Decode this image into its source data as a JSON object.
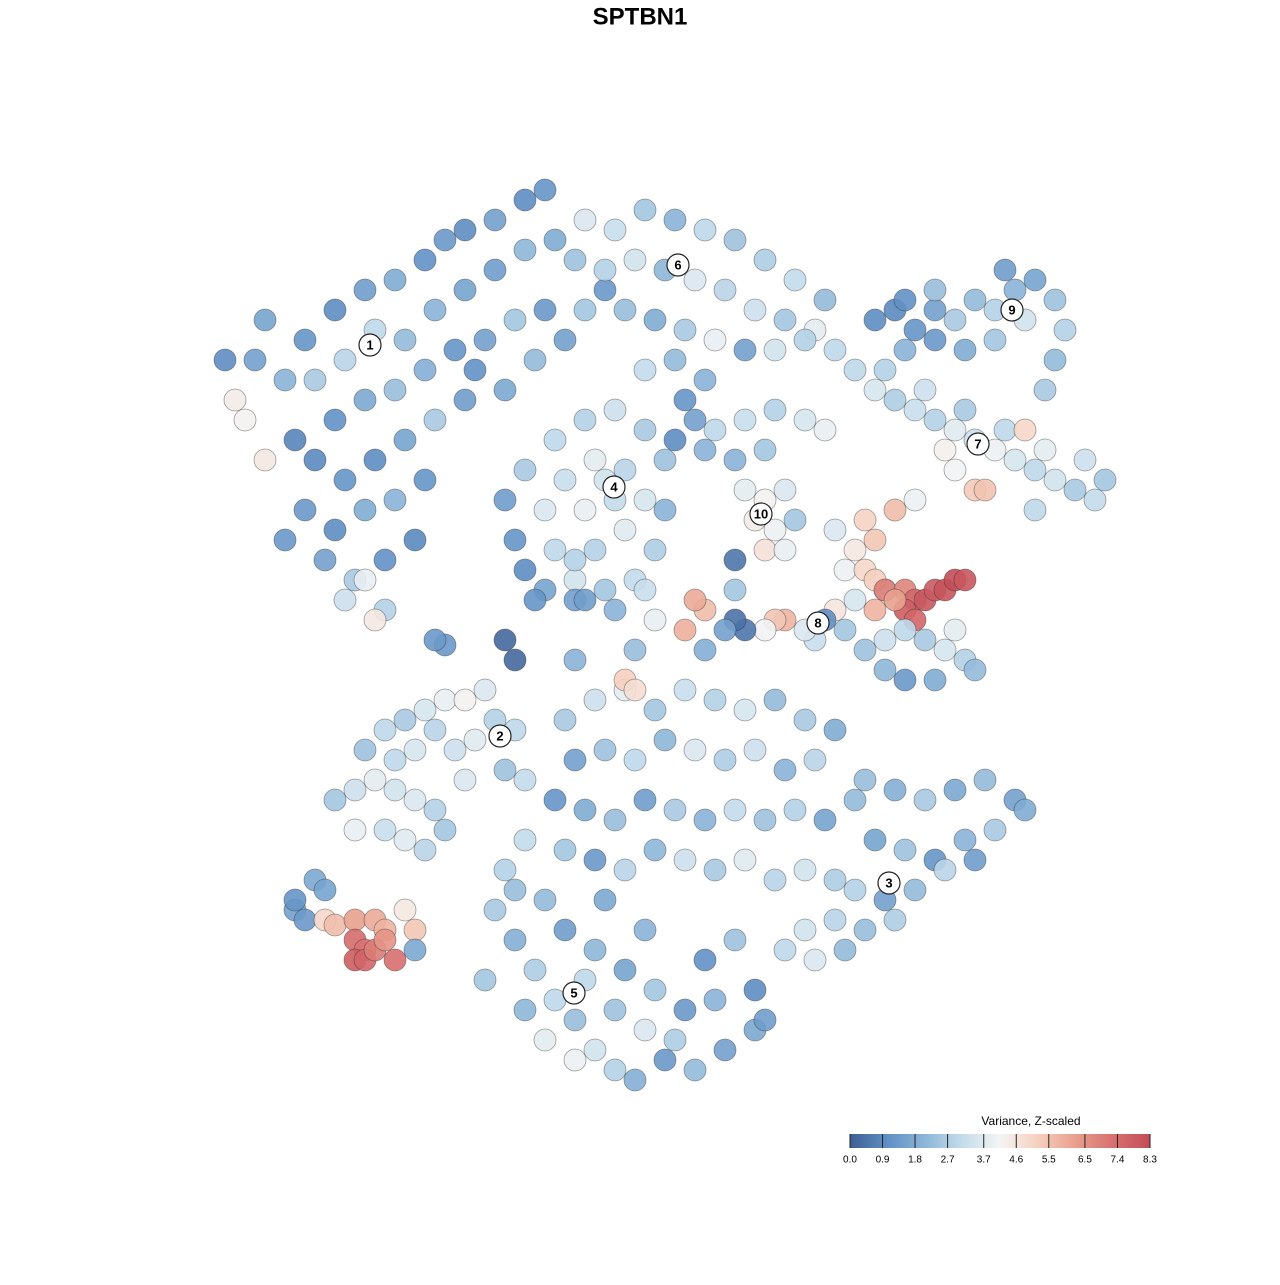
{
  "chart_data": {
    "type": "scatter",
    "title": "SPTBN1",
    "xlim": [
      -47,
      47
    ],
    "ylim": [
      -46,
      46
    ],
    "x": [
      -42,
      -43,
      -40,
      -38,
      -41,
      -36,
      -33,
      -30,
      -27,
      -24,
      -22,
      -20,
      -17,
      -14,
      -12,
      -35,
      -32,
      -29,
      -26,
      -23,
      -20,
      -17,
      -14,
      -11,
      -9,
      -33,
      -30,
      -27,
      -24,
      -21,
      -18,
      -15,
      -12,
      -35,
      -32,
      -29,
      -26,
      -23,
      -20,
      -36,
      -33,
      -30,
      -27,
      -24,
      -34,
      -31,
      -28,
      -25,
      -32,
      -28,
      -29,
      -30,
      -38,
      -37,
      -44,
      -40,
      -19,
      -16,
      -13,
      -10,
      -8,
      -6,
      -8,
      -5,
      -2,
      1,
      4,
      7,
      10,
      13,
      16,
      -6,
      -3,
      0,
      3,
      6,
      9,
      12,
      15,
      17,
      -4,
      -1,
      2,
      5,
      8,
      1,
      -2,
      4,
      11,
      14,
      2,
      3,
      1,
      4,
      21,
      23,
      25,
      27,
      29,
      31,
      33,
      35,
      37,
      39,
      40,
      39,
      38,
      36,
      33,
      30,
      27,
      24,
      34,
      27,
      24,
      19,
      21,
      23,
      25,
      27,
      29,
      31,
      33,
      35,
      37,
      39,
      41,
      43,
      44,
      42,
      38,
      34,
      30,
      26,
      22,
      28,
      31,
      32,
      37,
      36,
      29,
      5,
      8,
      11,
      14,
      16,
      10,
      7,
      -16,
      -15,
      -14,
      -12,
      -14,
      -11,
      -8,
      -5,
      -2,
      0,
      0,
      -1,
      -3,
      -6,
      -9,
      -11,
      -12,
      -10,
      -7,
      -4,
      -2,
      -4,
      -7,
      -8,
      -5,
      -6,
      -13,
      -9,
      8,
      10,
      12,
      9,
      11,
      10,
      12,
      7,
      13,
      17,
      19,
      20,
      21,
      23,
      25,
      18,
      20,
      22,
      19,
      17,
      21,
      22,
      24,
      25,
      26,
      27,
      28,
      29,
      30,
      24,
      23,
      21,
      25,
      16,
      18,
      20,
      22,
      24,
      26,
      28,
      30,
      31,
      27,
      24,
      22,
      29,
      15,
      14,
      12,
      11,
      10,
      8,
      7,
      6,
      4,
      3,
      2,
      -1,
      -5,
      -3,
      -15,
      -22,
      -9,
      -2,
      7,
      4,
      -9,
      -33,
      -31,
      -29,
      -27,
      -25,
      -23,
      -31,
      -28,
      -26,
      -24,
      -22,
      -30,
      -28,
      -26,
      -24,
      -22,
      -20,
      -18,
      -17,
      -15,
      -19,
      -21,
      -23,
      -25,
      -16,
      -14,
      -20,
      -27,
      -37,
      -36,
      -35,
      -34,
      -33,
      -31,
      -29,
      -28,
      -26,
      -25,
      -31,
      -30,
      -31,
      -30,
      -29,
      -28,
      -27,
      -10,
      -7,
      -4,
      -1,
      2,
      5,
      8,
      11,
      14,
      17,
      -9,
      -6,
      -3,
      0,
      3,
      6,
      9,
      12,
      15,
      -4,
      -3,
      -11,
      -8,
      -5,
      -2,
      1,
      4,
      7,
      10,
      13,
      16,
      19,
      -10,
      -7,
      -4,
      -1,
      2,
      5,
      8,
      11,
      14,
      17,
      -16,
      -14,
      -12,
      20,
      23,
      26,
      29,
      32,
      35,
      21,
      24,
      27,
      30,
      33,
      36,
      19,
      22,
      25,
      28,
      31,
      14,
      17,
      20,
      23,
      12,
      15,
      18,
      -17,
      -15,
      -13,
      -11,
      -9,
      -7,
      -5,
      -3,
      0,
      3,
      6,
      9,
      -10,
      -7,
      -4,
      -1,
      2,
      5,
      -8,
      -5,
      -2,
      1,
      -12,
      -9,
      4,
      7,
      -2,
      -15,
      -18,
      -14,
      -6,
      9,
      10,
      -23,
      -16,
      -8,
      -25,
      -34,
      -37
    ],
    "y": [
      22,
      24,
      18,
      26,
      28,
      30,
      33,
      35,
      36,
      38,
      40,
      41,
      42,
      44,
      45,
      26,
      28,
      31,
      30,
      33,
      35,
      37,
      39,
      40,
      38,
      22,
      24,
      25,
      27,
      29,
      30,
      32,
      33,
      18,
      16,
      18,
      20,
      22,
      24,
      13,
      11,
      13,
      14,
      16,
      8,
      6,
      8,
      10,
      4,
      3,
      2,
      6,
      10,
      20,
      28,
      32,
      27,
      25,
      28,
      30,
      33,
      35,
      42,
      41,
      43,
      42,
      41,
      40,
      38,
      36,
      34,
      37,
      38,
      37,
      36,
      35,
      33,
      32,
      31,
      29,
      33,
      32,
      31,
      30,
      29,
      28,
      27,
      26,
      29,
      30,
      24,
      22,
      20,
      19,
      32,
      33,
      31,
      33,
      32,
      34,
      33,
      35,
      36,
      34,
      31,
      28,
      25,
      32,
      30,
      29,
      30,
      29,
      37,
      35,
      34,
      27,
      25,
      24,
      23,
      22,
      21,
      20,
      19,
      18,
      17,
      16,
      15,
      14,
      16,
      18,
      19,
      21,
      23,
      25,
      27,
      19,
      15,
      15,
      13,
      21,
      17,
      21,
      22,
      23,
      22,
      21,
      19,
      18,
      14,
      10,
      7,
      5,
      17,
      20,
      22,
      23,
      21,
      18,
      13,
      9,
      6,
      5,
      6,
      9,
      13,
      16,
      18,
      17,
      14,
      11,
      9,
      13,
      14,
      16,
      4,
      4,
      15,
      14,
      15,
      12,
      11,
      9,
      9,
      8,
      12,
      11,
      9,
      12,
      10,
      13,
      14,
      7,
      7,
      5,
      4,
      3,
      6,
      5,
      5,
      4,
      4,
      5,
      5,
      6,
      6,
      3,
      4,
      3,
      2,
      2,
      1,
      -1,
      0,
      1,
      0,
      -1,
      -2,
      -3,
      -4,
      -4,
      -3,
      1,
      0,
      1,
      2,
      2,
      1,
      1,
      2,
      1,
      3,
      4,
      1,
      2,
      3,
      -1,
      -2,
      -0.5,
      8,
      5,
      5,
      -1,
      -2,
      -16,
      -15,
      -14,
      -15,
      -16,
      -17,
      -19,
      -19,
      -20,
      -21,
      -19,
      -11,
      -9,
      -8,
      -7,
      -6,
      -6,
      -5,
      -8,
      -9,
      -10,
      -11,
      -9,
      -11,
      -13,
      -14,
      -14,
      -12,
      -27,
      -28,
      -24,
      -28,
      -28.5,
      -28,
      -28,
      -29,
      -27,
      -29,
      -30,
      -31,
      -32,
      -32,
      -31,
      -30,
      -32,
      -8,
      -6,
      -5,
      -7,
      -5,
      -6,
      -7,
      -6,
      -8,
      -9,
      -12,
      -11,
      -12,
      -10,
      -11,
      -12,
      -11,
      -13,
      -12,
      -4,
      -5,
      -16,
      -17,
      -18,
      -16,
      -17,
      -18,
      -17,
      -18,
      -17,
      -18,
      -16,
      -21,
      -22,
      -23,
      -21,
      -22,
      -23,
      -22,
      -24,
      -23,
      -24,
      -23,
      -20,
      -26,
      -14,
      -15,
      -16,
      -15,
      -14,
      -16,
      -20,
      -21,
      -22,
      -20,
      -19,
      -17,
      -25,
      -26,
      -25,
      -23,
      -22,
      -29,
      -28,
      -29,
      -28,
      -31,
      -32,
      -31,
      -27,
      -30,
      -33,
      -36,
      -38,
      -41,
      -43,
      -44,
      -42,
      -43,
      -41,
      -39,
      -29,
      -31,
      -33,
      -35,
      -37,
      -36,
      -34,
      -37,
      -39,
      -40,
      -40,
      -42,
      -32,
      -30,
      -29,
      -25,
      -34,
      -37,
      -26,
      -35,
      -38,
      0,
      0,
      4,
      -31,
      -25,
      -26
    ],
    "values": [
      4.2,
      4.4,
      4.5,
      2.0,
      1.5,
      1.2,
      1.0,
      1.4,
      1.8,
      1.1,
      1.3,
      1.0,
      1.5,
      1.0,
      1.2,
      2.6,
      2.9,
      3.0,
      2.2,
      2.0,
      1.6,
      1.4,
      2.1,
      1.8,
      2.4,
      1.1,
      1.7,
      2.3,
      1.9,
      1.2,
      1.5,
      2.5,
      1.3,
      0.9,
      1.2,
      1.0,
      1.6,
      2.6,
      1.4,
      1.3,
      1.0,
      1.8,
      2.0,
      1.2,
      1.5,
      2.6,
      1.1,
      0.9,
      3.3,
      2.8,
      4.5,
      3.9,
      1.3,
      0.8,
      1.0,
      1.6,
      1.1,
      1.7,
      2.2,
      1.5,
      2.5,
      1.3,
      3.6,
      3.2,
      2.5,
      2.0,
      3.0,
      2.4,
      2.7,
      3.1,
      2.2,
      2.8,
      3.4,
      2.1,
      3.6,
      2.9,
      3.3,
      2.5,
      3.8,
      3.0,
      2.3,
      1.8,
      2.6,
      3.9,
      1.5,
      2.2,
      3.1,
      2.0,
      3.4,
      2.8,
      1.2,
      1.5,
      1.0,
      2.0,
      1.0,
      0.9,
      1.2,
      1.5,
      2.6,
      2.2,
      2.8,
      2.0,
      1.6,
      2.4,
      2.8,
      2.2,
      2.6,
      3.4,
      2.5,
      1.8,
      1.3,
      2.0,
      1.4,
      2.3,
      1.1,
      3.0,
      3.5,
      2.7,
      3.2,
      2.8,
      3.7,
      3.3,
      4.0,
      3.5,
      3.0,
      3.4,
      2.6,
      3.1,
      2.5,
      3.3,
      3.8,
      3.0,
      2.6,
      3.3,
      2.8,
      4.3,
      5.3,
      5.5,
      3.0,
      5.0,
      4.1,
      3.0,
      3.2,
      2.8,
      3.5,
      3.9,
      2.5,
      2.0,
      1.4,
      1.2,
      1.0,
      1.6,
      2.6,
      3.0,
      2.8,
      3.3,
      2.6,
      2.4,
      2.0,
      2.7,
      3.1,
      2.5,
      3.4,
      3.0,
      3.6,
      3.2,
      3.8,
      2.9,
      3.5,
      3.7,
      2.8,
      3.9,
      3.1,
      3.4,
      1.2,
      1.5,
      3.8,
      4.2,
      3.6,
      4.4,
      4.0,
      4.7,
      3.9,
      0.5,
      2.5,
      3.6,
      4.5,
      5.1,
      5.4,
      5.6,
      4.0,
      4.0,
      5.0,
      4.3,
      3.5,
      4.6,
      5.2,
      7.0,
      6.8,
      7.5,
      8.0,
      7.9,
      8.1,
      8.3,
      8.0,
      7.8,
      6.2,
      5.8,
      7.6,
      1.0,
      2.5,
      2.4,
      3.3,
      3.0,
      2.6,
      3.5,
      2.8,
      2.2,
      1.8,
      1.3,
      2.1,
      3.8,
      3.2,
      3.6,
      5.8,
      5.4,
      4.1,
      0.5,
      0.4,
      1.5,
      5.6,
      6.0,
      5.9,
      3.9,
      2.0,
      2.3,
      0.2,
      1.3,
      2.8,
      3.2,
      2.5,
      1.9,
      2.0,
      2.5,
      3.3,
      3.8,
      3.4,
      3.6,
      2.8,
      3.9,
      3.2,
      3.7,
      2.9,
      2.5,
      2.4,
      3.0,
      2.6,
      3.5,
      3.9,
      4.2,
      3.6,
      2.8,
      3.0,
      3.7,
      3.3,
      2.9,
      3.5,
      2.4,
      3.1,
      3.6,
      3.0,
      1.5,
      1.3,
      1.7,
      5.0,
      5.6,
      6.2,
      6.0,
      5.8,
      4.5,
      5.4,
      7.4,
      7.2,
      7.8,
      7.6,
      7.0,
      6.5,
      7.3,
      2.6,
      3.3,
      3.8,
      2.5,
      3.2,
      2.8,
      3.5,
      2.2,
      2.6,
      1.8,
      1.5,
      2.4,
      3.0,
      2.1,
      3.6,
      2.7,
      3.3,
      2.0,
      2.9,
      5.2,
      4.8,
      1.2,
      1.8,
      2.3,
      1.4,
      2.6,
      2.0,
      3.1,
      2.4,
      2.8,
      1.6,
      2.2,
      2.5,
      1.3,
      2.9,
      2.1,
      3.3,
      2.6,
      3.7,
      2.9,
      3.4,
      2.7,
      2.8,
      3.1,
      2.2,
      2.3,
      1.9,
      2.6,
      1.7,
      2.2,
      1.5,
      1.6,
      2.4,
      1.2,
      2.0,
      2.6,
      1.8,
      2.8,
      1.5,
      2.2,
      2.9,
      1.4,
      3.4,
      2.9,
      2.3,
      2.7,
      3.0,
      3.6,
      2.2,
      2.6,
      1.9,
      2.7,
      3.0,
      2.3,
      3.4,
      2.8,
      1.9,
      1.3,
      2.2,
      1.5,
      1.7,
      1.4,
      2.1,
      1.6,
      2.5,
      1.3,
      2.0,
      3.0,
      2.4,
      3.6,
      2.7,
      3.8,
      4.0,
      1.1,
      2.4,
      2.0,
      2.3,
      2.5,
      2.1,
      1.7,
      1.0,
      1.4,
      1.3,
      0.2,
      1.4,
      1.7,
      1.6,
      1.2
    ],
    "clusters": {
      "labels": [
        1,
        2,
        3,
        4,
        5,
        6,
        7,
        8,
        9,
        10
      ],
      "x": [
        -29.5,
        -16.5,
        22.4,
        -5.1,
        -9.1,
        1.3,
        31.3,
        15.3,
        34.7,
        9.6
      ],
      "y": [
        29.5,
        -9.6,
        -24.3,
        15.3,
        -35.3,
        37.5,
        19.6,
        1.7,
        33,
        12.6
      ]
    },
    "colorbar": {
      "title": "Variance, Z-scaled",
      "clim": [
        0,
        8.3
      ],
      "colors": [
        "#3f5f94",
        "#5f8fc4",
        "#8cb6d8",
        "#c4dceb",
        "#f4f4f4",
        "#f6d0c0",
        "#e8a08c",
        "#d87070",
        "#c24d57"
      ],
      "ticks": [
        {
          "value": 0,
          "label": "0.0"
        },
        0.9,
        1.8,
        2.7,
        3.7,
        4.6,
        5.5,
        6.5,
        7.4,
        8.3
      ]
    }
  }
}
